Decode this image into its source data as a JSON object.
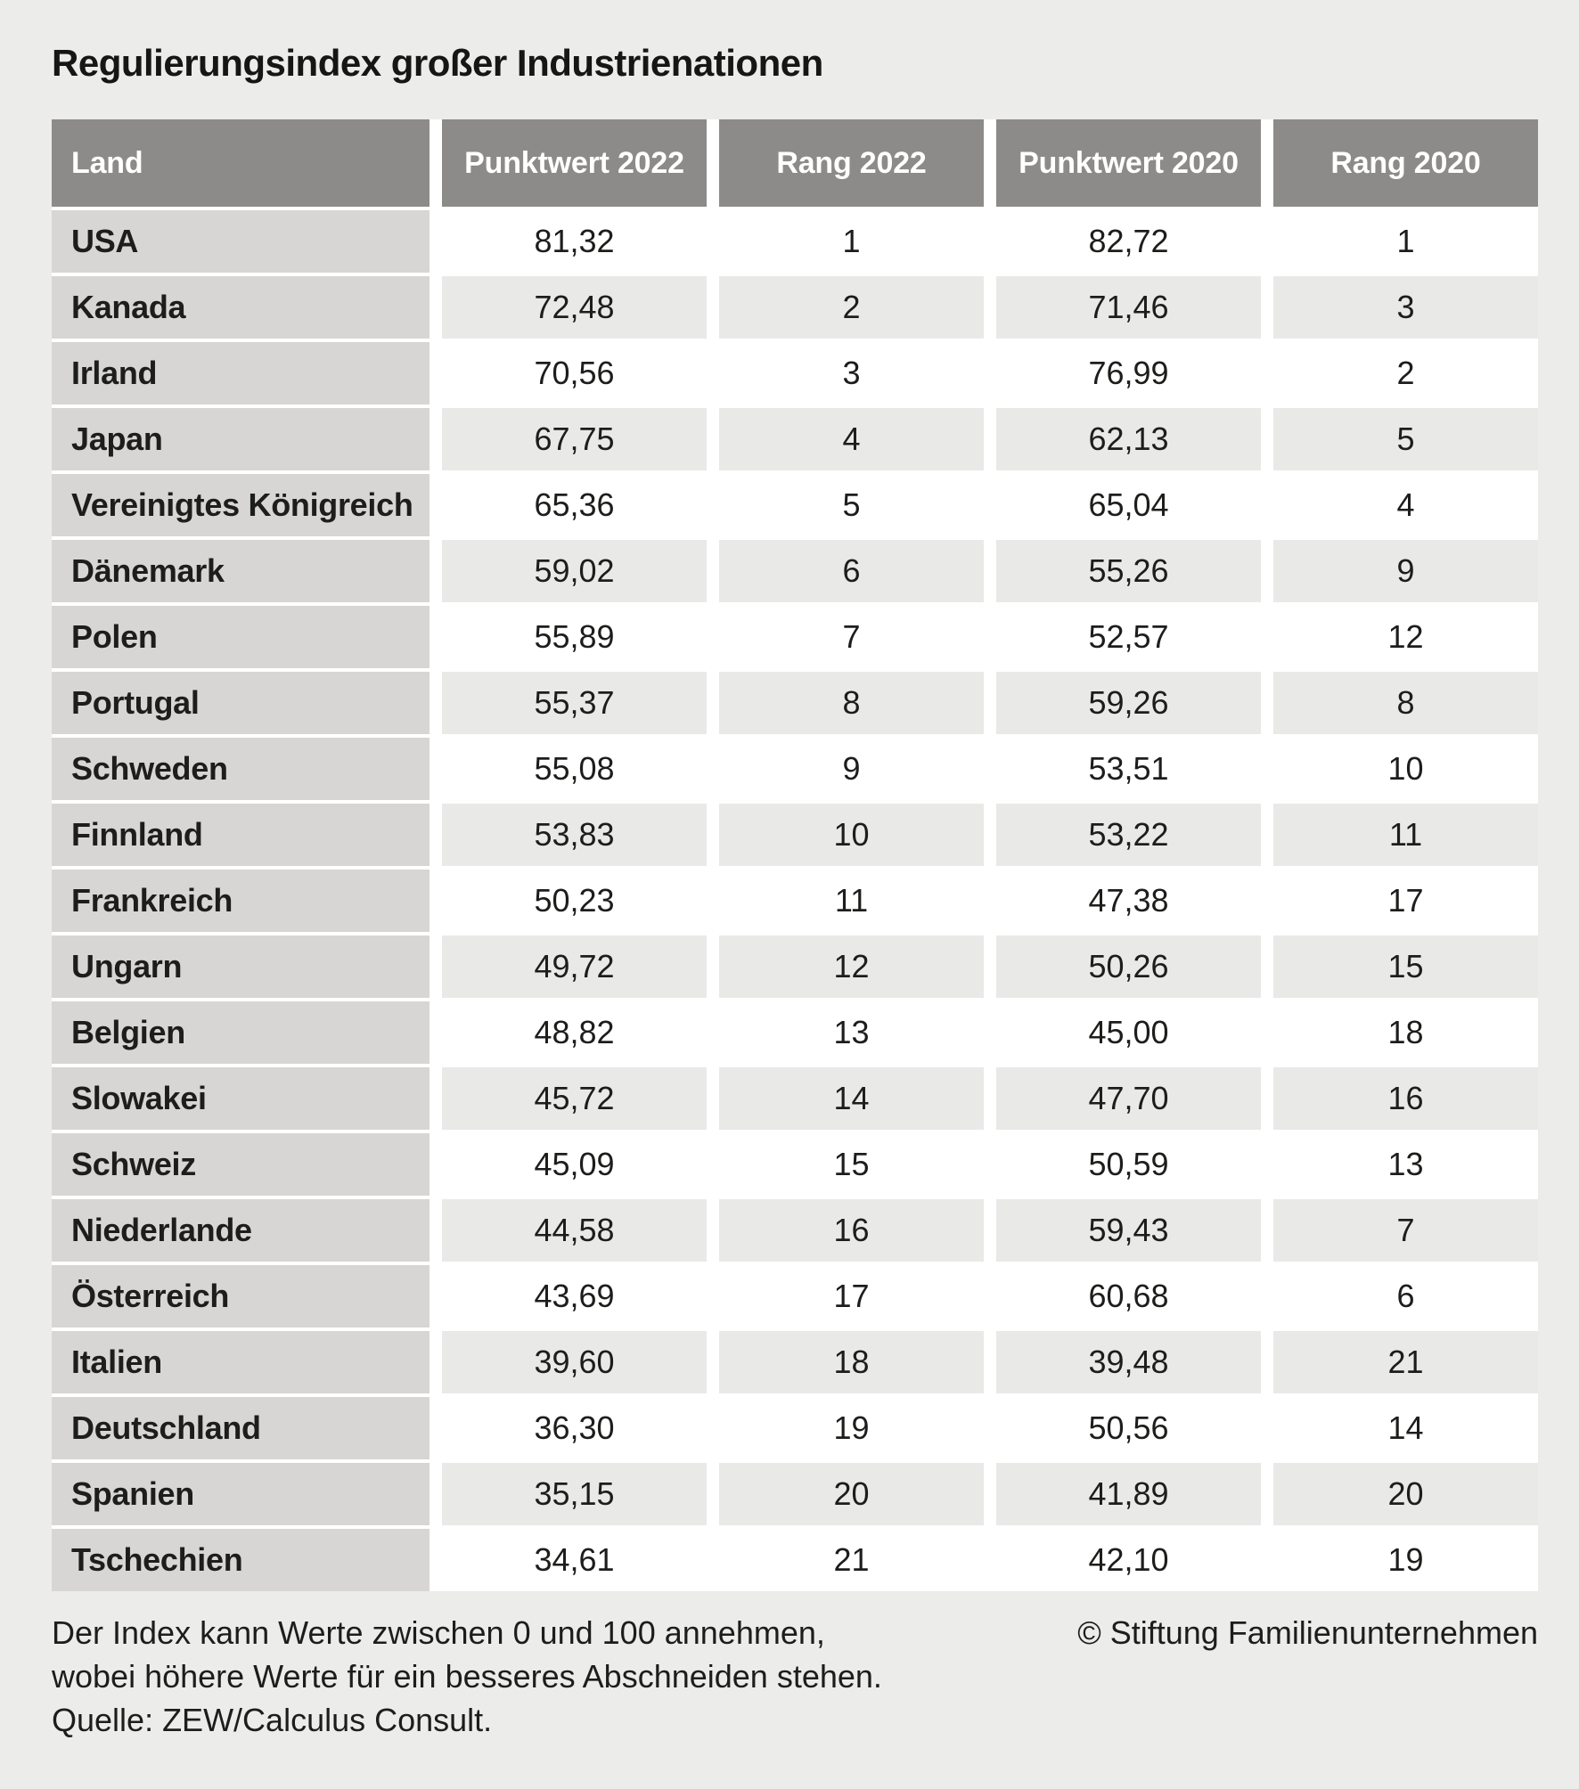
{
  "title": "Regulierungsindex großer Industrienationen",
  "chart_data": {
    "type": "table",
    "title": "Regulierungsindex großer Industrienationen",
    "columns": [
      "Land",
      "Punktwert 2022",
      "Rang 2022",
      "Punktwert 2020",
      "Rang 2020"
    ],
    "rows": [
      {
        "land": "USA",
        "punktwert_2022": "81,32",
        "rang_2022": "1",
        "punktwert_2020": "82,72",
        "rang_2020": "1"
      },
      {
        "land": "Kanada",
        "punktwert_2022": "72,48",
        "rang_2022": "2",
        "punktwert_2020": "71,46",
        "rang_2020": "3"
      },
      {
        "land": "Irland",
        "punktwert_2022": "70,56",
        "rang_2022": "3",
        "punktwert_2020": "76,99",
        "rang_2020": "2"
      },
      {
        "land": "Japan",
        "punktwert_2022": "67,75",
        "rang_2022": "4",
        "punktwert_2020": "62,13",
        "rang_2020": "5"
      },
      {
        "land": "Vereinigtes Königreich",
        "punktwert_2022": "65,36",
        "rang_2022": "5",
        "punktwert_2020": "65,04",
        "rang_2020": "4"
      },
      {
        "land": "Dänemark",
        "punktwert_2022": "59,02",
        "rang_2022": "6",
        "punktwert_2020": "55,26",
        "rang_2020": "9"
      },
      {
        "land": "Polen",
        "punktwert_2022": "55,89",
        "rang_2022": "7",
        "punktwert_2020": "52,57",
        "rang_2020": "12"
      },
      {
        "land": "Portugal",
        "punktwert_2022": "55,37",
        "rang_2022": "8",
        "punktwert_2020": "59,26",
        "rang_2020": "8"
      },
      {
        "land": "Schweden",
        "punktwert_2022": "55,08",
        "rang_2022": "9",
        "punktwert_2020": "53,51",
        "rang_2020": "10"
      },
      {
        "land": "Finnland",
        "punktwert_2022": "53,83",
        "rang_2022": "10",
        "punktwert_2020": "53,22",
        "rang_2020": "11"
      },
      {
        "land": "Frankreich",
        "punktwert_2022": "50,23",
        "rang_2022": "11",
        "punktwert_2020": "47,38",
        "rang_2020": "17"
      },
      {
        "land": "Ungarn",
        "punktwert_2022": "49,72",
        "rang_2022": "12",
        "punktwert_2020": "50,26",
        "rang_2020": "15"
      },
      {
        "land": "Belgien",
        "punktwert_2022": "48,82",
        "rang_2022": "13",
        "punktwert_2020": "45,00",
        "rang_2020": "18"
      },
      {
        "land": "Slowakei",
        "punktwert_2022": "45,72",
        "rang_2022": "14",
        "punktwert_2020": "47,70",
        "rang_2020": "16"
      },
      {
        "land": "Schweiz",
        "punktwert_2022": "45,09",
        "rang_2022": "15",
        "punktwert_2020": "50,59",
        "rang_2020": "13"
      },
      {
        "land": "Niederlande",
        "punktwert_2022": "44,58",
        "rang_2022": "16",
        "punktwert_2020": "59,43",
        "rang_2020": "7"
      },
      {
        "land": "Österreich",
        "punktwert_2022": "43,69",
        "rang_2022": "17",
        "punktwert_2020": "60,68",
        "rang_2020": "6"
      },
      {
        "land": "Italien",
        "punktwert_2022": "39,60",
        "rang_2022": "18",
        "punktwert_2020": "39,48",
        "rang_2020": "21"
      },
      {
        "land": "Deutschland",
        "punktwert_2022": "36,30",
        "rang_2022": "19",
        "punktwert_2020": "50,56",
        "rang_2020": "14"
      },
      {
        "land": "Spanien",
        "punktwert_2022": "35,15",
        "rang_2022": "20",
        "punktwert_2020": "41,89",
        "rang_2020": "20"
      },
      {
        "land": "Tschechien",
        "punktwert_2022": "34,61",
        "rang_2022": "21",
        "punktwert_2020": "42,10",
        "rang_2020": "19"
      }
    ],
    "value_range_note": [
      0,
      100
    ],
    "layout": {
      "grid": "off",
      "legend": "none"
    }
  },
  "footer": {
    "note_line1": "Der Index kann Werte zwischen 0 und 100 annehmen,",
    "note_line2": "wobei höhere Werte für ein besseres Abschneiden stehen.",
    "source": "Quelle: ZEW/Calculus Consult.",
    "copyright": "© Stiftung Familienunternehmen"
  },
  "colors": {
    "page_background": "#ececeb",
    "header_background": "#8c8b89",
    "header_text": "#ffffff",
    "land_column_background": "#d7d6d4",
    "row_white": "#ffffff",
    "row_gray": "#e9e9e7",
    "text": "#1d1d1b"
  }
}
